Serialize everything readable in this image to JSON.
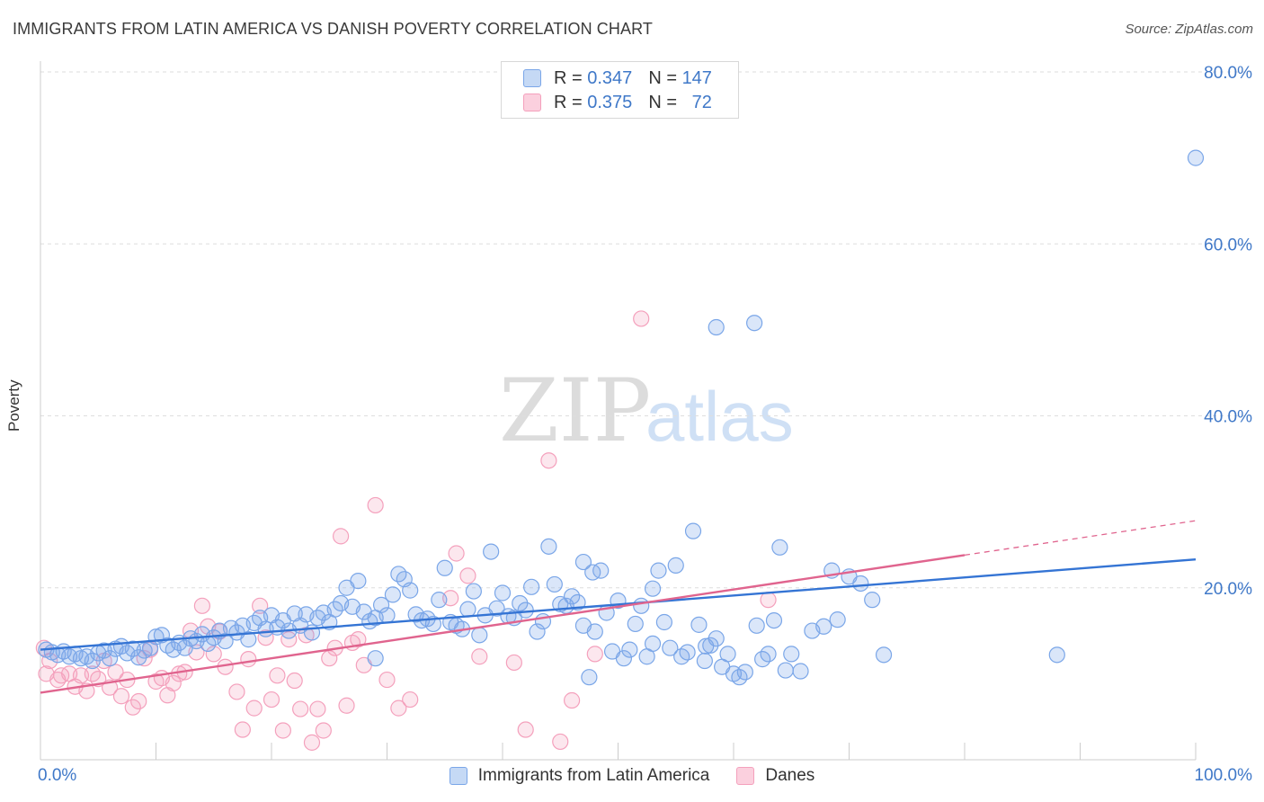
{
  "chart_data": {
    "type": "scatter",
    "title": "IMMIGRANTS FROM LATIN AMERICA VS DANISH POVERTY CORRELATION CHART",
    "source": "Source: ZipAtlas.com",
    "ylabel": "Poverty",
    "xlabel": "",
    "xlim": [
      0,
      100
    ],
    "ylim": [
      0,
      80
    ],
    "x_ticks": [
      "0.0%",
      "100.0%"
    ],
    "y_ticks": [
      {
        "value": 20,
        "label": "20.0%"
      },
      {
        "value": 40,
        "label": "40.0%"
      },
      {
        "value": 60,
        "label": "60.0%"
      },
      {
        "value": 80,
        "label": "80.0%"
      }
    ],
    "grid": "horizontal dashed",
    "legend_placement": "top-center",
    "watermark": "ZIPatlas",
    "series": [
      {
        "name": "Immigrants from Latin America",
        "color": "#7aa6e8",
        "line_color": "#3474d4",
        "r_label": "R =",
        "r_value": "0.347",
        "n_label": "N =",
        "n_value": "147",
        "trend": {
          "x0": 0,
          "y0": 12.8,
          "x1": 100,
          "y1": 23.3
        },
        "points": [
          [
            0.5,
            12.8
          ],
          [
            1,
            12.5
          ],
          [
            1.5,
            12.2
          ],
          [
            2,
            12.6
          ],
          [
            2.5,
            12.0
          ],
          [
            3,
            12.3
          ],
          [
            3.5,
            11.8
          ],
          [
            4,
            12.0
          ],
          [
            4.5,
            11.5
          ],
          [
            5,
            12.4
          ],
          [
            5.5,
            12.7
          ],
          [
            6,
            11.8
          ],
          [
            6.5,
            12.9
          ],
          [
            7,
            13.2
          ],
          [
            7.5,
            12.4
          ],
          [
            8,
            12.9
          ],
          [
            8.5,
            11.9
          ],
          [
            9,
            12.7
          ],
          [
            9.5,
            13.0
          ],
          [
            10,
            14.3
          ],
          [
            10.5,
            14.5
          ],
          [
            11,
            13.3
          ],
          [
            11.5,
            12.8
          ],
          [
            12,
            13.6
          ],
          [
            12.5,
            13.0
          ],
          [
            13,
            14.1
          ],
          [
            13.5,
            13.8
          ],
          [
            14,
            14.6
          ],
          [
            14.5,
            13.5
          ],
          [
            15,
            14.2
          ],
          [
            15.5,
            15.0
          ],
          [
            16,
            13.8
          ],
          [
            16.5,
            15.3
          ],
          [
            17,
            14.8
          ],
          [
            17.5,
            15.6
          ],
          [
            18,
            14.0
          ],
          [
            18.5,
            15.9
          ],
          [
            19,
            16.5
          ],
          [
            19.5,
            15.2
          ],
          [
            20,
            16.8
          ],
          [
            20.5,
            15.4
          ],
          [
            21,
            16.2
          ],
          [
            21.5,
            15.0
          ],
          [
            22,
            17.0
          ],
          [
            22.5,
            15.6
          ],
          [
            23,
            16.9
          ],
          [
            23.5,
            14.8
          ],
          [
            24,
            16.5
          ],
          [
            24.5,
            17.1
          ],
          [
            25,
            16.0
          ],
          [
            25.5,
            17.5
          ],
          [
            26,
            18.2
          ],
          [
            26.5,
            20.0
          ],
          [
            27,
            17.8
          ],
          [
            27.5,
            20.8
          ],
          [
            28,
            17.2
          ],
          [
            28.5,
            16.1
          ],
          [
            29,
            16.5
          ],
          [
            29.5,
            18.0
          ],
          [
            30,
            16.8
          ],
          [
            30.5,
            19.2
          ],
          [
            31,
            21.6
          ],
          [
            31.5,
            21.0
          ],
          [
            32,
            19.7
          ],
          [
            32.5,
            16.9
          ],
          [
            33,
            16.2
          ],
          [
            33.5,
            16.4
          ],
          [
            34,
            15.8
          ],
          [
            34.5,
            18.6
          ],
          [
            35,
            22.3
          ],
          [
            35.5,
            16.0
          ],
          [
            36,
            15.6
          ],
          [
            36.5,
            15.2
          ],
          [
            37,
            17.5
          ],
          [
            37.5,
            19.6
          ],
          [
            38,
            14.5
          ],
          [
            38.5,
            16.8
          ],
          [
            39,
            24.2
          ],
          [
            39.5,
            17.6
          ],
          [
            40,
            19.4
          ],
          [
            40.5,
            16.7
          ],
          [
            41,
            16.5
          ],
          [
            41.5,
            18.2
          ],
          [
            42,
            17.4
          ],
          [
            42.5,
            20.1
          ],
          [
            43,
            14.9
          ],
          [
            43.5,
            16.1
          ],
          [
            44,
            24.8
          ],
          [
            44.5,
            20.4
          ],
          [
            45,
            18.1
          ],
          [
            45.5,
            17.9
          ],
          [
            46,
            19.0
          ],
          [
            46.5,
            18.3
          ],
          [
            47,
            15.6
          ],
          [
            47.5,
            9.6
          ],
          [
            48,
            14.9
          ],
          [
            48.5,
            22.0
          ],
          [
            49,
            17.1
          ],
          [
            49.5,
            12.6
          ],
          [
            50,
            18.5
          ],
          [
            50.5,
            11.8
          ],
          [
            51,
            12.8
          ],
          [
            51.5,
            15.8
          ],
          [
            52,
            17.9
          ],
          [
            52.5,
            12.0
          ],
          [
            53,
            19.9
          ],
          [
            53.5,
            22.0
          ],
          [
            54,
            16.0
          ],
          [
            54.5,
            13.0
          ],
          [
            55,
            22.6
          ],
          [
            55.5,
            12.0
          ],
          [
            56,
            12.5
          ],
          [
            56.5,
            26.6
          ],
          [
            57,
            15.7
          ],
          [
            57.5,
            11.5
          ],
          [
            58,
            13.3
          ],
          [
            58.5,
            14.1
          ],
          [
            59,
            10.8
          ],
          [
            59.5,
            12.3
          ],
          [
            60,
            10.0
          ],
          [
            60.5,
            9.6
          ],
          [
            61,
            10.2
          ],
          [
            62,
            15.6
          ],
          [
            62.5,
            11.7
          ],
          [
            63,
            12.3
          ],
          [
            63.5,
            16.2
          ],
          [
            64,
            24.7
          ],
          [
            64.5,
            10.4
          ],
          [
            65,
            12.3
          ],
          [
            65.8,
            10.3
          ],
          [
            66.8,
            15.0
          ],
          [
            67.8,
            15.5
          ],
          [
            68.5,
            22.0
          ],
          [
            69,
            16.3
          ],
          [
            70,
            21.3
          ],
          [
            71,
            20.5
          ],
          [
            72,
            18.6
          ],
          [
            73,
            12.2
          ],
          [
            58.5,
            50.3
          ],
          [
            61.8,
            50.8
          ],
          [
            100,
            70.0
          ],
          [
            88,
            12.2
          ],
          [
            29,
            11.8
          ],
          [
            47,
            23.0
          ],
          [
            53,
            13.5
          ],
          [
            47.8,
            21.8
          ],
          [
            57.6,
            13.2
          ]
        ]
      },
      {
        "name": "Danes",
        "color": "#f4a0bc",
        "line_color": "#e0648e",
        "r_label": "R =",
        "r_value": "0.375",
        "n_label": "N =",
        "n_value": "72",
        "trend": {
          "x0": 0,
          "y0": 7.8,
          "x1": 80,
          "y1": 23.8
        },
        "trend_dashed": {
          "x0": 80,
          "y0": 23.8,
          "x1": 100,
          "y1": 27.8
        },
        "points": [
          [
            0.3,
            13.0
          ],
          [
            0.5,
            10.0
          ],
          [
            0.8,
            11.5
          ],
          [
            1.5,
            9.3
          ],
          [
            1.8,
            9.8
          ],
          [
            2.5,
            10.0
          ],
          [
            3,
            8.5
          ],
          [
            3.5,
            9.8
          ],
          [
            4,
            8.0
          ],
          [
            4.5,
            10.0
          ],
          [
            5,
            9.4
          ],
          [
            5.5,
            11.5
          ],
          [
            6,
            8.4
          ],
          [
            6.5,
            10.2
          ],
          [
            7,
            7.4
          ],
          [
            7.5,
            9.3
          ],
          [
            8,
            6.1
          ],
          [
            8.5,
            6.8
          ],
          [
            9,
            11.8
          ],
          [
            9.5,
            12.8
          ],
          [
            10,
            9.1
          ],
          [
            10.5,
            9.5
          ],
          [
            11,
            7.5
          ],
          [
            11.5,
            8.9
          ],
          [
            12,
            10.0
          ],
          [
            12.5,
            10.2
          ],
          [
            13,
            15.0
          ],
          [
            13.5,
            12.5
          ],
          [
            14,
            17.9
          ],
          [
            14.5,
            15.5
          ],
          [
            15,
            12.3
          ],
          [
            15.5,
            14.9
          ],
          [
            16,
            10.8
          ],
          [
            17,
            7.9
          ],
          [
            17.5,
            3.5
          ],
          [
            18,
            11.7
          ],
          [
            18.5,
            6.0
          ],
          [
            19,
            17.9
          ],
          [
            19.5,
            14.2
          ],
          [
            20,
            7.0
          ],
          [
            20.5,
            9.8
          ],
          [
            21,
            3.4
          ],
          [
            21.5,
            14.0
          ],
          [
            22,
            9.2
          ],
          [
            22.5,
            5.9
          ],
          [
            23,
            14.5
          ],
          [
            23.5,
            2.0
          ],
          [
            24,
            5.9
          ],
          [
            24.5,
            3.4
          ],
          [
            25,
            11.8
          ],
          [
            25.5,
            13.0
          ],
          [
            26,
            26.0
          ],
          [
            26.5,
            6.3
          ],
          [
            27,
            13.6
          ],
          [
            27.5,
            14.0
          ],
          [
            28,
            11.0
          ],
          [
            29,
            29.6
          ],
          [
            30,
            9.3
          ],
          [
            31,
            6.0
          ],
          [
            32,
            7.0
          ],
          [
            35.5,
            18.8
          ],
          [
            36,
            24.0
          ],
          [
            37,
            21.4
          ],
          [
            38,
            12.0
          ],
          [
            41,
            11.3
          ],
          [
            42,
            3.5
          ],
          [
            44,
            34.8
          ],
          [
            45,
            2.1
          ],
          [
            46,
            6.9
          ],
          [
            48,
            12.3
          ],
          [
            52,
            51.3
          ],
          [
            63,
            18.6
          ]
        ]
      }
    ]
  }
}
